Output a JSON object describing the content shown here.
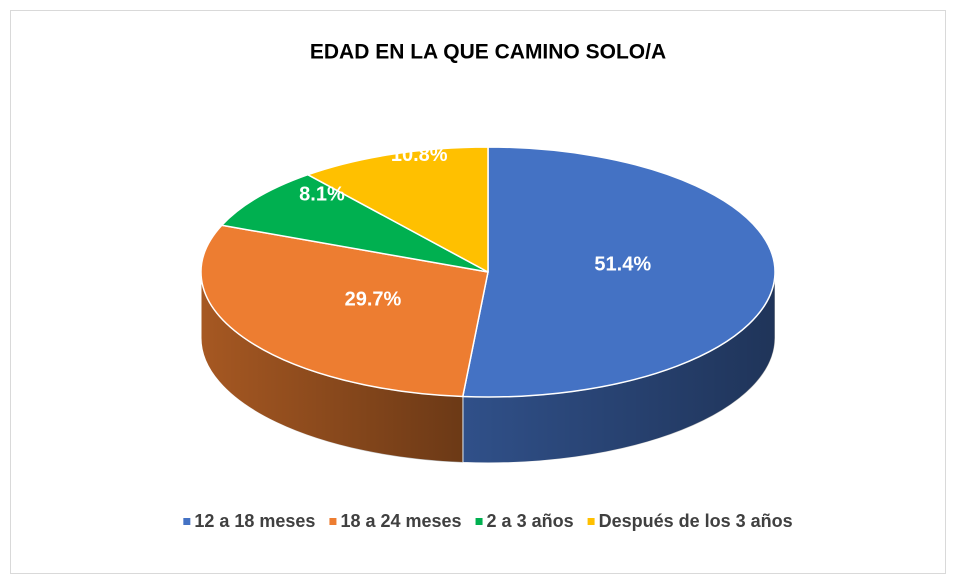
{
  "chart_data": {
    "type": "pie",
    "title": "EDAD EN LA QUE CAMINO SOLO/A",
    "categories": [
      "12 a 18 meses",
      "18 a 24 meses",
      "2 a 3 años",
      "Después de los 3 años"
    ],
    "values": [
      51.4,
      29.7,
      8.1,
      10.8
    ],
    "value_labels": [
      "51.4%",
      "29.7%",
      "8.1%",
      "10.8%"
    ],
    "colors": [
      "#4472c4",
      "#ed7d31",
      "#00b050",
      "#ffc000"
    ],
    "legend": "bottom"
  }
}
